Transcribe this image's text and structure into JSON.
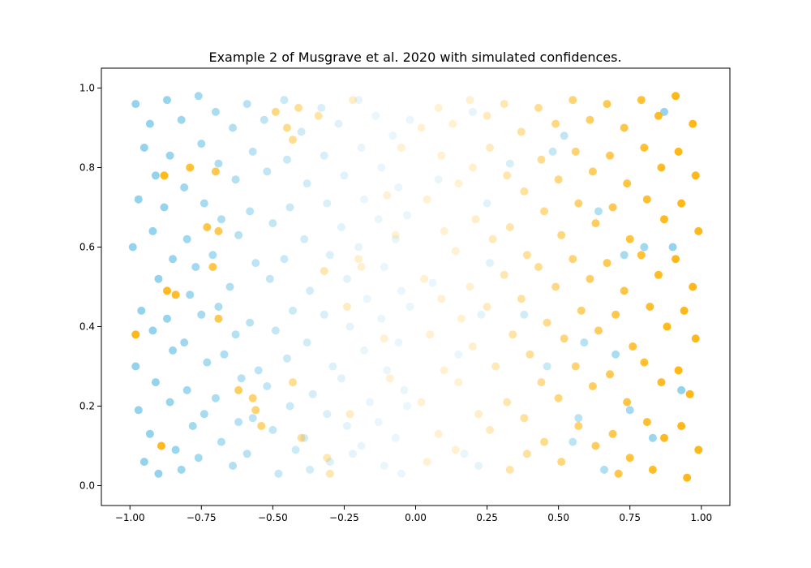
{
  "chart_data": {
    "type": "scatter",
    "title": "Example 2 of Musgrave et al. 2020 with simulated confidences.",
    "xlabel": "",
    "ylabel": "",
    "xlim": [
      -1.1,
      1.1
    ],
    "ylim": [
      -0.05,
      1.05
    ],
    "xticks": [
      -1.0,
      -0.75,
      -0.5,
      -0.25,
      0.0,
      0.25,
      0.5,
      0.75,
      1.0
    ],
    "xtick_labels": [
      "−1.00",
      "−0.75",
      "−0.50",
      "−0.25",
      "0.00",
      "0.25",
      "0.50",
      "0.75",
      "1.00"
    ],
    "yticks": [
      0.0,
      0.2,
      0.4,
      0.6,
      0.8,
      1.0
    ],
    "ytick_labels": [
      "0.0",
      "0.2",
      "0.4",
      "0.6",
      "0.8",
      "1.0"
    ],
    "grid": false,
    "legend": "none",
    "colors": {
      "negative_class": "#87CEEB",
      "positive_class": "#FFB000"
    },
    "opacity_encoding": "point alpha equals simulated confidence, approximately |x|",
    "series": [
      {
        "name": "",
        "color": "#87CEEB",
        "points": [
          [
            -0.98,
            0.96
          ],
          [
            -0.95,
            0.85
          ],
          [
            -0.97,
            0.72
          ],
          [
            -0.99,
            0.6
          ],
          [
            -0.96,
            0.44
          ],
          [
            -0.98,
            0.3
          ],
          [
            -0.97,
            0.19
          ],
          [
            -0.95,
            0.06
          ],
          [
            -0.93,
            0.91
          ],
          [
            -0.91,
            0.78
          ],
          [
            -0.92,
            0.64
          ],
          [
            -0.9,
            0.52
          ],
          [
            -0.92,
            0.39
          ],
          [
            -0.91,
            0.26
          ],
          [
            -0.93,
            0.13
          ],
          [
            -0.9,
            0.03
          ],
          [
            -0.87,
            0.97
          ],
          [
            -0.86,
            0.83
          ],
          [
            -0.88,
            0.7
          ],
          [
            -0.85,
            0.57
          ],
          [
            -0.87,
            0.42
          ],
          [
            -0.85,
            0.34
          ],
          [
            -0.86,
            0.21
          ],
          [
            -0.84,
            0.09
          ],
          [
            -0.82,
            0.92
          ],
          [
            -0.81,
            0.75
          ],
          [
            -0.8,
            0.62
          ],
          [
            -0.79,
            0.48
          ],
          [
            -0.81,
            0.36
          ],
          [
            -0.8,
            0.24
          ],
          [
            -0.78,
            0.15
          ],
          [
            -0.82,
            0.04
          ],
          [
            -0.76,
            0.98
          ],
          [
            -0.75,
            0.86
          ],
          [
            -0.74,
            0.71
          ],
          [
            -0.77,
            0.55
          ],
          [
            -0.75,
            0.43
          ],
          [
            -0.73,
            0.31
          ],
          [
            -0.74,
            0.18
          ],
          [
            -0.76,
            0.07
          ],
          [
            -0.7,
            0.94
          ],
          [
            -0.69,
            0.81
          ],
          [
            -0.68,
            0.67
          ],
          [
            -0.71,
            0.58
          ],
          [
            -0.69,
            0.45
          ],
          [
            -0.67,
            0.33
          ],
          [
            -0.7,
            0.22
          ],
          [
            -0.68,
            0.11
          ],
          [
            -0.64,
            0.9
          ],
          [
            -0.63,
            0.77
          ],
          [
            -0.62,
            0.63
          ],
          [
            -0.65,
            0.5
          ],
          [
            -0.63,
            0.38
          ],
          [
            -0.61,
            0.27
          ],
          [
            -0.62,
            0.16
          ],
          [
            -0.64,
            0.05
          ],
          [
            -0.59,
            0.96
          ],
          [
            -0.57,
            0.84
          ],
          [
            -0.58,
            0.69
          ],
          [
            -0.56,
            0.56
          ],
          [
            -0.58,
            0.41
          ],
          [
            -0.55,
            0.29
          ],
          [
            -0.57,
            0.17
          ],
          [
            -0.59,
            0.08
          ],
          [
            -0.53,
            0.92
          ],
          [
            -0.52,
            0.79
          ],
          [
            -0.5,
            0.66
          ],
          [
            -0.51,
            0.52
          ],
          [
            -0.49,
            0.39
          ],
          [
            -0.52,
            0.25
          ],
          [
            -0.5,
            0.14
          ],
          [
            -0.48,
            0.03
          ],
          [
            -0.46,
            0.97
          ],
          [
            -0.45,
            0.82
          ],
          [
            -0.44,
            0.7
          ],
          [
            -0.46,
            0.57
          ],
          [
            -0.43,
            0.44
          ],
          [
            -0.45,
            0.32
          ],
          [
            -0.44,
            0.2
          ],
          [
            -0.42,
            0.09
          ],
          [
            -0.4,
            0.89
          ],
          [
            -0.38,
            0.76
          ],
          [
            -0.39,
            0.62
          ],
          [
            -0.37,
            0.49
          ],
          [
            -0.38,
            0.36
          ],
          [
            -0.36,
            0.23
          ],
          [
            -0.39,
            0.12
          ],
          [
            -0.37,
            0.04
          ],
          [
            -0.33,
            0.95
          ],
          [
            -0.32,
            0.83
          ],
          [
            -0.31,
            0.71
          ],
          [
            -0.3,
            0.58
          ],
          [
            -0.32,
            0.43
          ],
          [
            -0.29,
            0.3
          ],
          [
            -0.31,
            0.18
          ],
          [
            -0.3,
            0.06
          ],
          [
            -0.27,
            0.91
          ],
          [
            -0.25,
            0.78
          ],
          [
            -0.26,
            0.65
          ],
          [
            -0.24,
            0.52
          ],
          [
            -0.23,
            0.4
          ],
          [
            -0.26,
            0.27
          ],
          [
            -0.24,
            0.15
          ],
          [
            -0.22,
            0.08
          ],
          [
            -0.2,
            0.97
          ],
          [
            -0.19,
            0.85
          ],
          [
            -0.18,
            0.72
          ],
          [
            -0.2,
            0.6
          ],
          [
            -0.17,
            0.47
          ],
          [
            -0.18,
            0.34
          ],
          [
            -0.16,
            0.21
          ],
          [
            -0.19,
            0.1
          ],
          [
            -0.14,
            0.93
          ],
          [
            -0.12,
            0.8
          ],
          [
            -0.13,
            0.67
          ],
          [
            -0.11,
            0.55
          ],
          [
            -0.12,
            0.42
          ],
          [
            -0.1,
            0.29
          ],
          [
            -0.13,
            0.16
          ],
          [
            -0.11,
            0.05
          ],
          [
            -0.08,
            0.88
          ],
          [
            -0.06,
            0.75
          ],
          [
            -0.07,
            0.62
          ],
          [
            -0.05,
            0.49
          ],
          [
            -0.06,
            0.36
          ],
          [
            -0.04,
            0.24
          ],
          [
            -0.07,
            0.12
          ],
          [
            -0.05,
            0.03
          ],
          [
            -0.02,
            0.92
          ],
          [
            -0.03,
            0.68
          ],
          [
            -0.02,
            0.45
          ],
          [
            -0.03,
            0.2
          ],
          [
            0.06,
            0.51
          ],
          [
            0.08,
            0.77
          ],
          [
            0.15,
            0.33
          ],
          [
            0.17,
            0.08
          ],
          [
            0.2,
            0.94
          ],
          [
            0.22,
            0.05
          ],
          [
            0.23,
            0.43
          ],
          [
            0.25,
            0.71
          ],
          [
            0.26,
            0.56
          ],
          [
            0.33,
            0.81
          ],
          [
            0.38,
            0.43
          ],
          [
            0.46,
            0.3
          ],
          [
            0.48,
            0.84
          ],
          [
            0.52,
            0.88
          ],
          [
            0.55,
            0.11
          ],
          [
            0.57,
            0.17
          ],
          [
            0.59,
            0.36
          ],
          [
            0.64,
            0.69
          ],
          [
            0.66,
            0.04
          ],
          [
            0.7,
            0.33
          ],
          [
            0.73,
            0.58
          ],
          [
            0.75,
            0.19
          ],
          [
            0.8,
            0.6
          ],
          [
            0.83,
            0.12
          ],
          [
            0.87,
            0.94
          ],
          [
            0.9,
            0.6
          ],
          [
            0.93,
            0.24
          ]
        ]
      },
      {
        "name": "",
        "color": "#FFB000",
        "points": [
          [
            0.02,
            0.9
          ],
          [
            0.04,
            0.72
          ],
          [
            0.03,
            0.52
          ],
          [
            0.05,
            0.38
          ],
          [
            0.02,
            0.21
          ],
          [
            0.04,
            0.06
          ],
          [
            0.08,
            0.95
          ],
          [
            0.09,
            0.83
          ],
          [
            0.1,
            0.64
          ],
          [
            0.09,
            0.47
          ],
          [
            0.1,
            0.29
          ],
          [
            0.08,
            0.13
          ],
          [
            0.13,
            0.91
          ],
          [
            0.15,
            0.76
          ],
          [
            0.14,
            0.59
          ],
          [
            0.16,
            0.42
          ],
          [
            0.15,
            0.26
          ],
          [
            0.14,
            0.09
          ],
          [
            0.19,
            0.97
          ],
          [
            0.2,
            0.8
          ],
          [
            0.21,
            0.67
          ],
          [
            0.19,
            0.5
          ],
          [
            0.2,
            0.35
          ],
          [
            0.22,
            0.18
          ],
          [
            0.25,
            0.93
          ],
          [
            0.26,
            0.85
          ],
          [
            0.27,
            0.62
          ],
          [
            0.25,
            0.45
          ],
          [
            0.28,
            0.3
          ],
          [
            0.26,
            0.14
          ],
          [
            0.31,
            0.96
          ],
          [
            0.32,
            0.78
          ],
          [
            0.33,
            0.65
          ],
          [
            0.31,
            0.53
          ],
          [
            0.34,
            0.38
          ],
          [
            0.32,
            0.21
          ],
          [
            0.33,
            0.04
          ],
          [
            0.37,
            0.89
          ],
          [
            0.38,
            0.74
          ],
          [
            0.39,
            0.58
          ],
          [
            0.37,
            0.47
          ],
          [
            0.4,
            0.33
          ],
          [
            0.38,
            0.17
          ],
          [
            0.39,
            0.08
          ],
          [
            0.43,
            0.95
          ],
          [
            0.44,
            0.82
          ],
          [
            0.45,
            0.69
          ],
          [
            0.43,
            0.55
          ],
          [
            0.46,
            0.41
          ],
          [
            0.44,
            0.26
          ],
          [
            0.45,
            0.11
          ],
          [
            0.49,
            0.91
          ],
          [
            0.5,
            0.77
          ],
          [
            0.51,
            0.63
          ],
          [
            0.49,
            0.5
          ],
          [
            0.52,
            0.37
          ],
          [
            0.5,
            0.22
          ],
          [
            0.51,
            0.06
          ],
          [
            0.55,
            0.97
          ],
          [
            0.56,
            0.84
          ],
          [
            0.57,
            0.71
          ],
          [
            0.55,
            0.57
          ],
          [
            0.58,
            0.44
          ],
          [
            0.56,
            0.3
          ],
          [
            0.57,
            0.15
          ],
          [
            0.61,
            0.92
          ],
          [
            0.62,
            0.79
          ],
          [
            0.63,
            0.66
          ],
          [
            0.61,
            0.52
          ],
          [
            0.64,
            0.39
          ],
          [
            0.62,
            0.25
          ],
          [
            0.63,
            0.1
          ],
          [
            0.67,
            0.96
          ],
          [
            0.68,
            0.83
          ],
          [
            0.69,
            0.7
          ],
          [
            0.67,
            0.56
          ],
          [
            0.7,
            0.43
          ],
          [
            0.68,
            0.28
          ],
          [
            0.69,
            0.13
          ],
          [
            0.71,
            0.03
          ],
          [
            0.73,
            0.9
          ],
          [
            0.74,
            0.76
          ],
          [
            0.75,
            0.62
          ],
          [
            0.73,
            0.49
          ],
          [
            0.76,
            0.35
          ],
          [
            0.74,
            0.21
          ],
          [
            0.75,
            0.07
          ],
          [
            0.79,
            0.97
          ],
          [
            0.8,
            0.85
          ],
          [
            0.81,
            0.72
          ],
          [
            0.79,
            0.58
          ],
          [
            0.82,
            0.45
          ],
          [
            0.8,
            0.31
          ],
          [
            0.81,
            0.16
          ],
          [
            0.83,
            0.04
          ],
          [
            0.85,
            0.93
          ],
          [
            0.86,
            0.8
          ],
          [
            0.87,
            0.67
          ],
          [
            0.85,
            0.53
          ],
          [
            0.88,
            0.4
          ],
          [
            0.86,
            0.26
          ],
          [
            0.87,
            0.12
          ],
          [
            0.91,
            0.98
          ],
          [
            0.92,
            0.84
          ],
          [
            0.93,
            0.71
          ],
          [
            0.91,
            0.57
          ],
          [
            0.94,
            0.44
          ],
          [
            0.92,
            0.29
          ],
          [
            0.93,
            0.15
          ],
          [
            0.95,
            0.02
          ],
          [
            0.97,
            0.91
          ],
          [
            0.98,
            0.78
          ],
          [
            0.99,
            0.64
          ],
          [
            0.97,
            0.5
          ],
          [
            0.98,
            0.37
          ],
          [
            0.96,
            0.23
          ],
          [
            0.99,
            0.09
          ],
          [
            -0.98,
            0.38
          ],
          [
            -0.89,
            0.1
          ],
          [
            -0.88,
            0.78
          ],
          [
            -0.87,
            0.49
          ],
          [
            -0.84,
            0.48
          ],
          [
            -0.79,
            0.8
          ],
          [
            -0.73,
            0.65
          ],
          [
            -0.71,
            0.55
          ],
          [
            -0.7,
            0.79
          ],
          [
            -0.69,
            0.42
          ],
          [
            -0.69,
            0.64
          ],
          [
            -0.62,
            0.24
          ],
          [
            -0.57,
            0.22
          ],
          [
            -0.56,
            0.19
          ],
          [
            -0.54,
            0.15
          ],
          [
            -0.49,
            0.94
          ],
          [
            -0.45,
            0.9
          ],
          [
            -0.43,
            0.87
          ],
          [
            -0.43,
            0.26
          ],
          [
            -0.41,
            0.95
          ],
          [
            -0.4,
            0.12
          ],
          [
            -0.34,
            0.93
          ],
          [
            -0.32,
            0.54
          ],
          [
            -0.31,
            0.07
          ],
          [
            -0.3,
            0.03
          ],
          [
            -0.24,
            0.45
          ],
          [
            -0.23,
            0.18
          ],
          [
            -0.22,
            0.97
          ],
          [
            -0.2,
            0.57
          ],
          [
            -0.19,
            0.55
          ],
          [
            -0.11,
            0.37
          ],
          [
            -0.1,
            0.73
          ],
          [
            -0.09,
            0.27
          ],
          [
            -0.07,
            0.63
          ],
          [
            -0.05,
            0.85
          ]
        ]
      }
    ]
  }
}
